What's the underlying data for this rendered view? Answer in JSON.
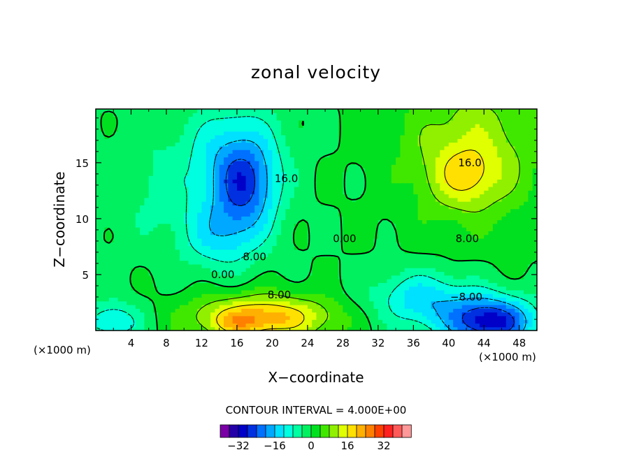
{
  "chart_data": {
    "type": "heatmap",
    "title": "zonal velocity",
    "xlabel": "X−coordinate",
    "ylabel": "Z−coordinate",
    "x_unit_left": "(×1000 m)",
    "x_unit_right": "(×1000 m)",
    "xlim": [
      0,
      50
    ],
    "ylim": [
      0,
      19.8
    ],
    "xticks": [
      4,
      8,
      12,
      16,
      20,
      24,
      28,
      32,
      36,
      40,
      44,
      48
    ],
    "yticks": [
      5,
      10,
      15
    ],
    "contour_interval_text": "CONTOUR INTERVAL = 4.000E+00",
    "contour_labels": [
      {
        "text": "16.0",
        "x": 42.4,
        "y": 15.0
      },
      {
        "text": "16.0",
        "x": 21.6,
        "y": 13.6
      },
      {
        "text": "8.00",
        "x": 42.1,
        "y": 8.2
      },
      {
        "text": "8.00",
        "x": 18.0,
        "y": 6.6
      },
      {
        "text": "0.00",
        "x": 28.2,
        "y": 8.2
      },
      {
        "text": "0.00",
        "x": 14.4,
        "y": 5.0
      },
      {
        "text": "8.00",
        "x": 20.8,
        "y": 3.2
      },
      {
        "text": "−8.00",
        "x": 42.0,
        "y": 3.0
      }
    ],
    "field_centers": [
      {
        "x": 17.0,
        "y": 12.8,
        "u": -18,
        "sx": 2.6,
        "sy": 2.6
      },
      {
        "x": 16.0,
        "y": 16.0,
        "u": -12,
        "sx": 3.5,
        "sy": 3.2
      },
      {
        "x": 14.5,
        "y": 8.5,
        "u": -12,
        "sx": 3.2,
        "sy": 2.2
      },
      {
        "x": 8.0,
        "y": 13.0,
        "u": -5,
        "sx": 5.0,
        "sy": 4.0
      },
      {
        "x": 2.0,
        "y": 0.8,
        "u": -12,
        "sx": 2.5,
        "sy": 1.3
      },
      {
        "x": 44.8,
        "y": 0.8,
        "u": -30,
        "sx": 3.5,
        "sy": 1.6
      },
      {
        "x": 37.0,
        "y": 2.8,
        "u": -14,
        "sx": 4.0,
        "sy": 1.8
      },
      {
        "x": 42.5,
        "y": 16.0,
        "u": 12,
        "sx": 5.5,
        "sy": 4.5
      },
      {
        "x": 42.0,
        "y": 13.8,
        "u": 9,
        "sx": 2.5,
        "sy": 1.8
      },
      {
        "x": 19.0,
        "y": 1.2,
        "u": 22,
        "sx": 5.5,
        "sy": 1.4
      },
      {
        "x": 16.0,
        "y": 0.6,
        "u": 6,
        "sx": 2.0,
        "sy": 0.8
      }
    ]
  },
  "colorbar": {
    "colors": [
      "#7a00a6",
      "#2400a8",
      "#0000c8",
      "#0030e0",
      "#0070ff",
      "#00a8ff",
      "#00e0ff",
      "#00ffe0",
      "#00ffa0",
      "#00f060",
      "#00e020",
      "#40e800",
      "#90f000",
      "#e0ff00",
      "#ffe000",
      "#ffb000",
      "#ff8000",
      "#ff4000",
      "#ff2020",
      "#ff5a5a",
      "#ff9898"
    ],
    "tick_labels": [
      "−32",
      "−16",
      "0",
      "16",
      "32"
    ]
  }
}
